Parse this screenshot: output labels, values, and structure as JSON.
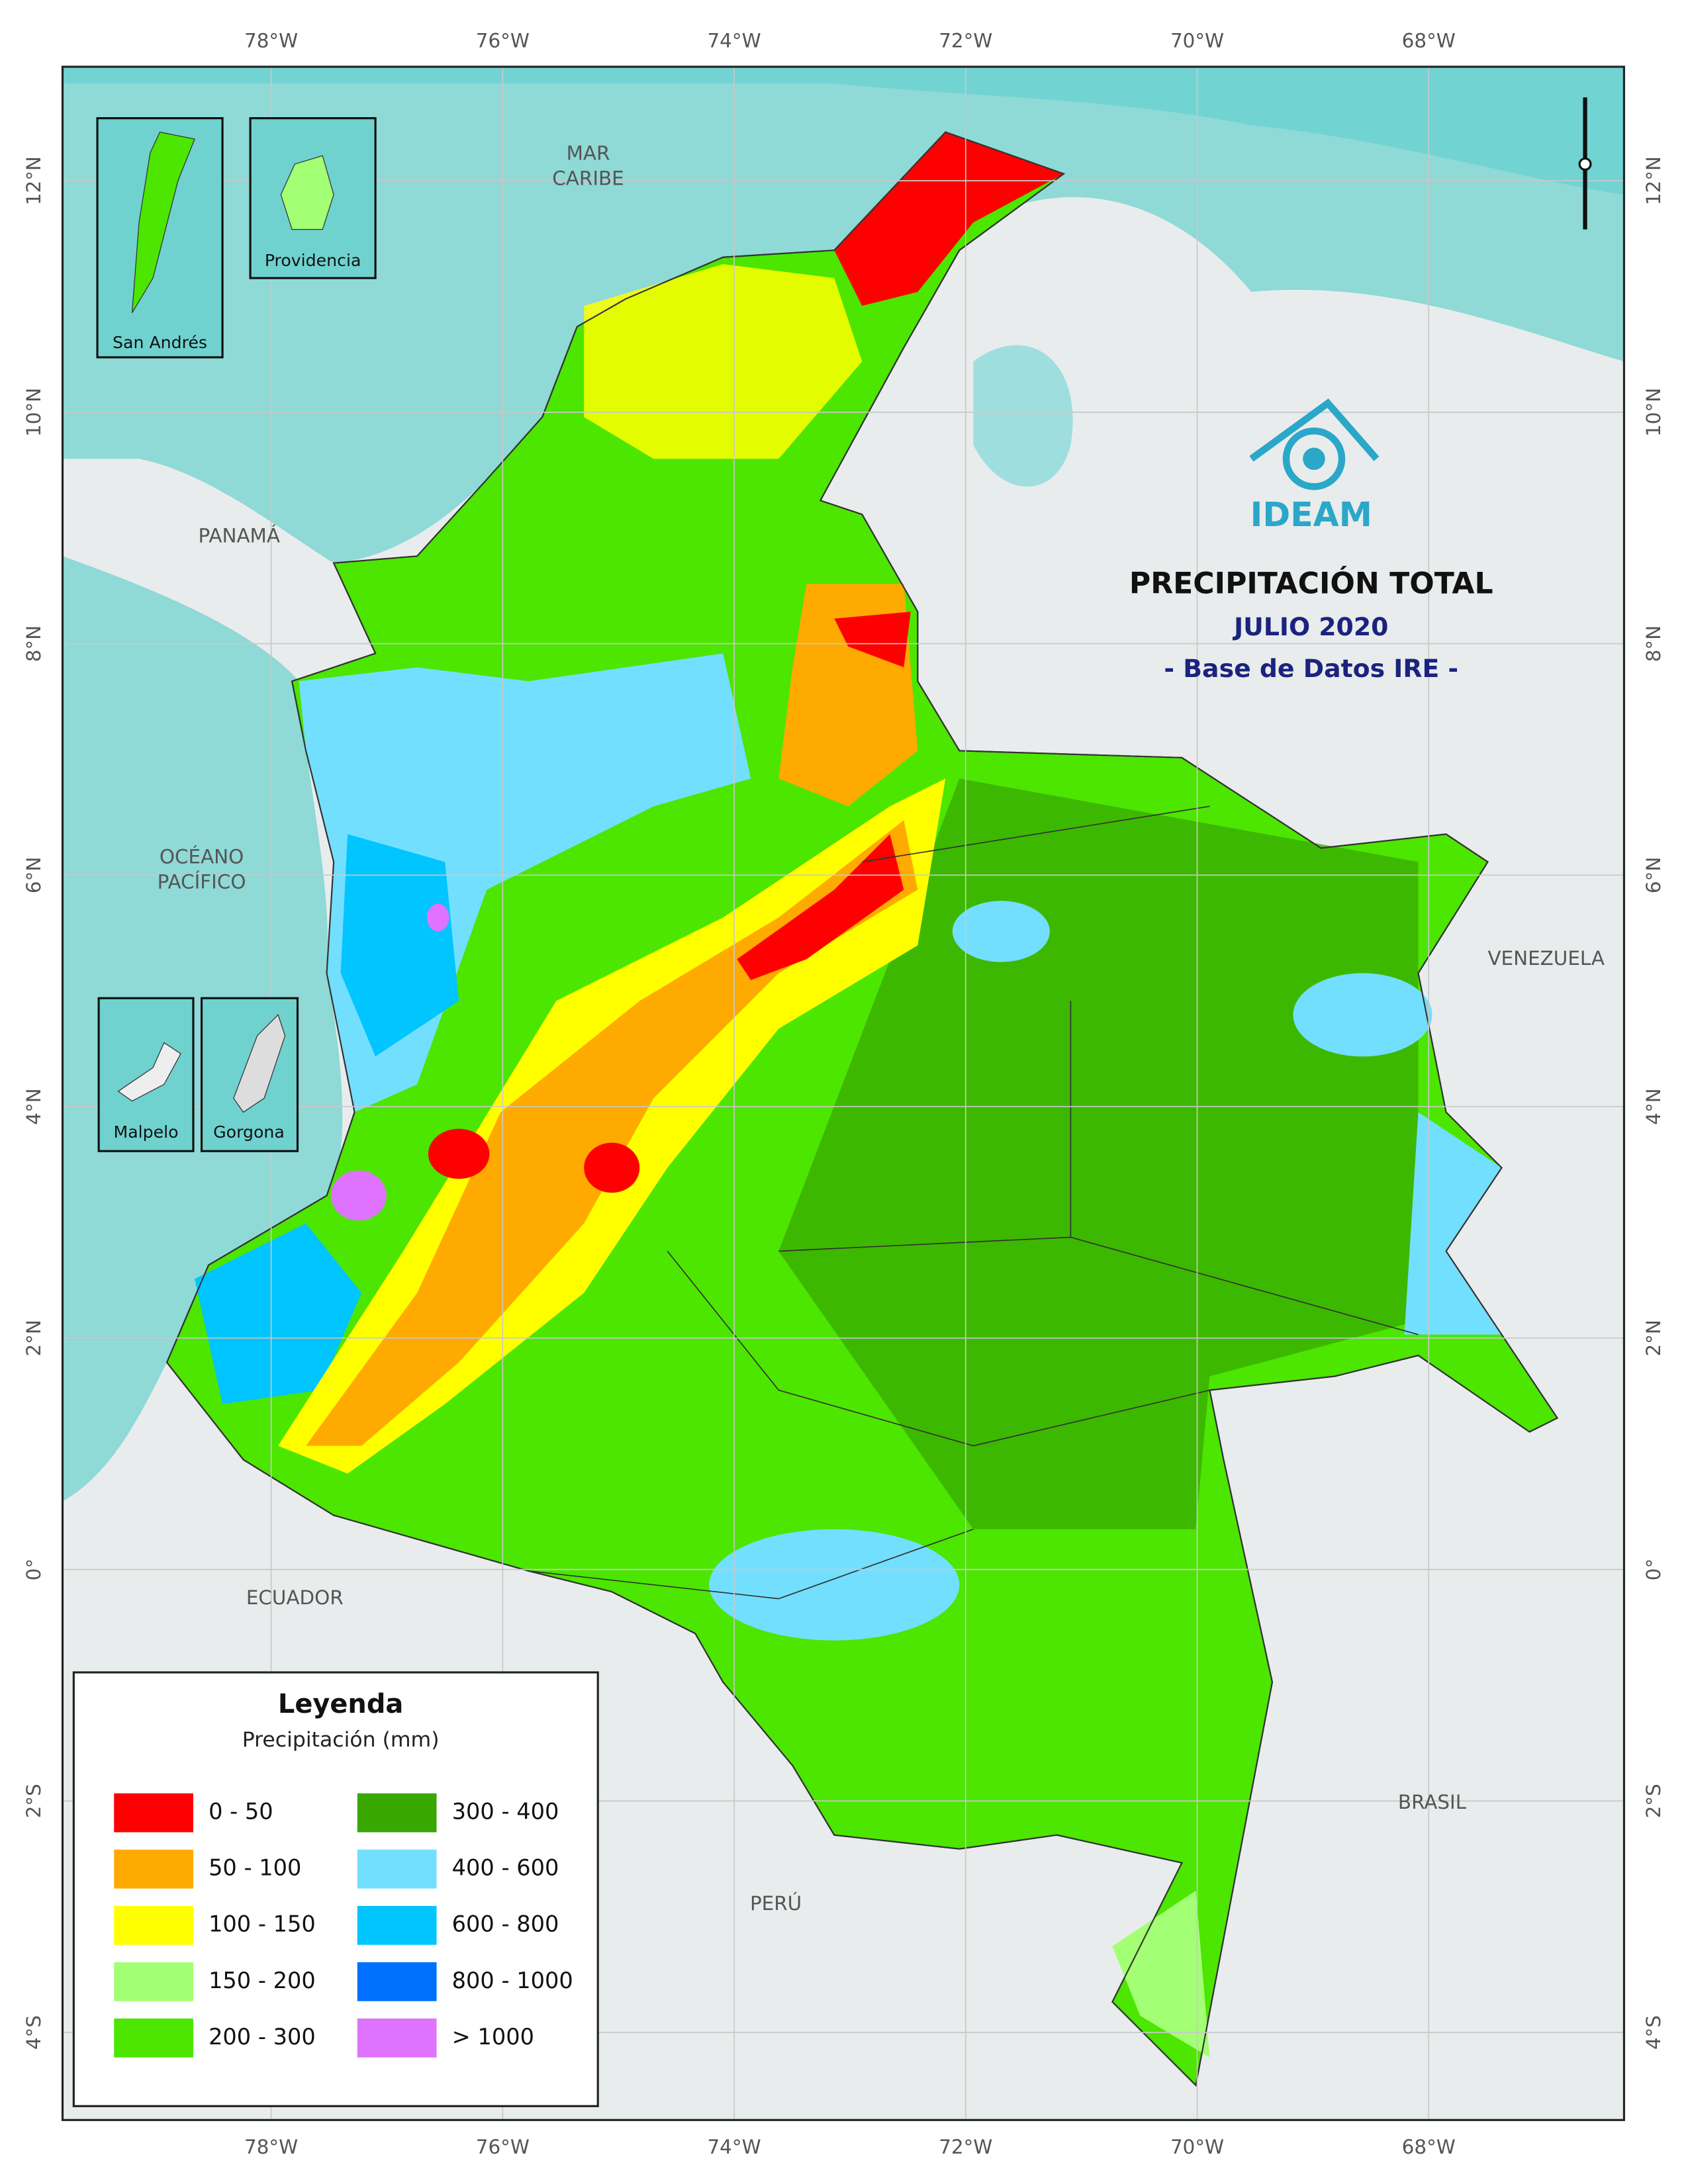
{
  "header": {
    "title": "PRECIPITACIÓN TOTAL",
    "period": "JULIO 2020",
    "source": "- Base de Datos IRE -",
    "logo": "IDEAM"
  },
  "graticule": {
    "longitudes": [
      "78°W",
      "76°W",
      "74°W",
      "72°W",
      "70°W",
      "68°W"
    ],
    "latitudes": [
      "12°N",
      "10°N",
      "8°N",
      "6°N",
      "4°N",
      "2°N",
      "0°",
      "2°S",
      "4°S"
    ]
  },
  "places": [
    [
      "MAR",
      "CARIBE"
    ],
    [
      "PANAMÁ"
    ],
    [
      "OCÉANO",
      "PACÍFICO"
    ],
    [
      "VENEZUELA"
    ],
    [
      "ECUADOR"
    ],
    [
      "BRASIL"
    ],
    [
      "PERÚ"
    ]
  ],
  "insets": [
    "San Andrés",
    "Providencia",
    "Malpelo",
    "Gorgona"
  ],
  "legend": {
    "title": "Leyenda",
    "subtitle": "Precipitación (mm)",
    "items": [
      {
        "label": "0 - 50",
        "color": "#ff0000"
      },
      {
        "label": "50 - 100",
        "color": "#ffaa00"
      },
      {
        "label": "100 - 150",
        "color": "#ffff00"
      },
      {
        "label": "150 - 200",
        "color": "#a3ff73"
      },
      {
        "label": "200 - 300",
        "color": "#4ce600"
      },
      {
        "label": "300 - 400",
        "color": "#38a800"
      },
      {
        "label": "400 - 600",
        "color": "#73dfff"
      },
      {
        "label": "600 - 800",
        "color": "#00c5ff"
      },
      {
        "label": "800 - 1000",
        "color": "#0070ff"
      },
      {
        "label": "> 1000",
        "color": "#df73ff"
      }
    ]
  }
}
